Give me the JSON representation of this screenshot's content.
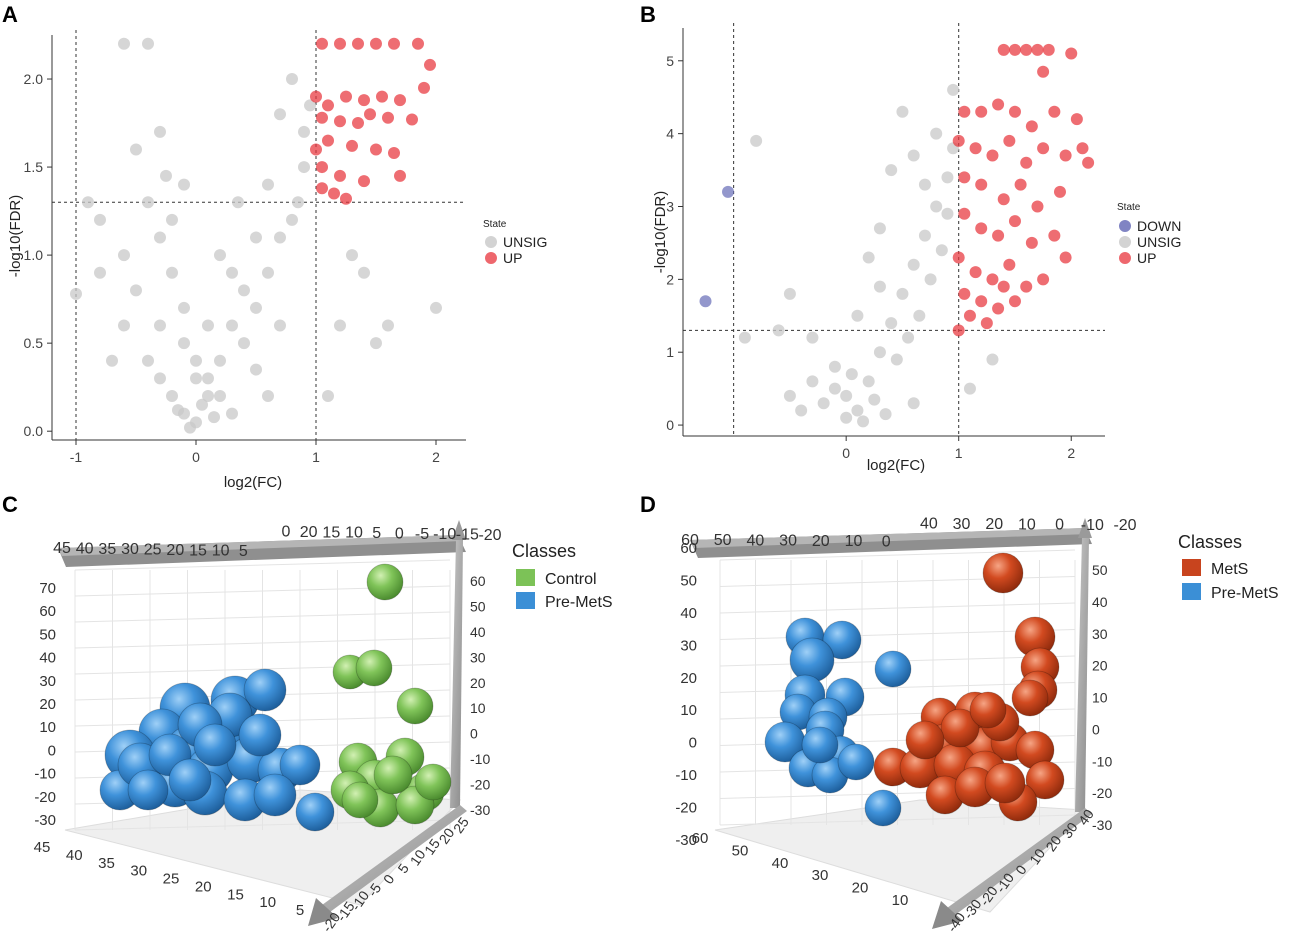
{
  "chart_data": [
    {
      "panel": "A",
      "type": "scatter",
      "xlabel": "log2(FC)",
      "ylabel": "-log10(FDR)",
      "xlim": [
        -1.2,
        2.25
      ],
      "ylim": [
        -0.05,
        2.25
      ],
      "xticks": [
        "-1",
        "0",
        "1",
        "2"
      ],
      "yticks": [
        "0.0",
        "0.5",
        "1.0",
        "1.5",
        "2.0"
      ],
      "thresholds": {
        "x": [
          -1,
          1
        ],
        "y": 1.3
      },
      "legend": {
        "title": "State",
        "items": [
          "UNSIG",
          "UP"
        ]
      },
      "colors": {
        "UNSIG": "#c8c8c8",
        "UP": "#e8343c"
      },
      "series": [
        {
          "name": "UNSIG",
          "points": [
            [
              -1.0,
              0.78
            ],
            [
              -0.8,
              1.2
            ],
            [
              -0.6,
              1.0
            ],
            [
              -0.5,
              1.6
            ],
            [
              -0.4,
              1.3
            ],
            [
              -0.3,
              1.1
            ],
            [
              -0.2,
              0.9
            ],
            [
              -0.3,
              0.6
            ],
            [
              -0.1,
              0.5
            ],
            [
              0.0,
              0.4
            ],
            [
              0.1,
              0.3
            ],
            [
              0.2,
              0.2
            ],
            [
              0.3,
              0.1
            ],
            [
              0.0,
              0.05
            ],
            [
              -0.1,
              0.1
            ],
            [
              -0.2,
              0.2
            ],
            [
              -0.3,
              0.3
            ],
            [
              -0.4,
              0.4
            ],
            [
              0.4,
              0.5
            ],
            [
              0.5,
              0.7
            ],
            [
              0.6,
              0.9
            ],
            [
              0.7,
              1.1
            ],
            [
              0.8,
              1.2
            ],
            [
              0.9,
              1.5
            ],
            [
              0.6,
              1.4
            ],
            [
              0.5,
              1.1
            ],
            [
              0.4,
              0.8
            ],
            [
              0.3,
              0.6
            ],
            [
              0.2,
              0.4
            ],
            [
              0.1,
              0.2
            ],
            [
              -0.5,
              0.8
            ],
            [
              -0.6,
              0.6
            ],
            [
              -0.7,
              0.4
            ],
            [
              -0.8,
              0.9
            ],
            [
              -0.2,
              1.2
            ],
            [
              -0.1,
              1.4
            ],
            [
              -0.3,
              1.7
            ],
            [
              -0.4,
              2.2
            ],
            [
              0.8,
              2.0
            ],
            [
              0.7,
              1.8
            ],
            [
              0.9,
              1.7
            ],
            [
              0.2,
              1.0
            ],
            [
              0.3,
              0.9
            ],
            [
              -0.1,
              0.7
            ],
            [
              0.1,
              0.6
            ],
            [
              0.0,
              0.3
            ],
            [
              0.05,
              0.15
            ],
            [
              -0.05,
              0.02
            ],
            [
              0.15,
              0.08
            ],
            [
              -0.15,
              0.12
            ],
            [
              0.6,
              0.2
            ],
            [
              0.5,
              0.35
            ],
            [
              1.2,
              0.6
            ],
            [
              1.4,
              0.9
            ],
            [
              1.3,
              1.0
            ],
            [
              1.6,
              0.6
            ],
            [
              2.0,
              0.7
            ],
            [
              1.1,
              0.2
            ],
            [
              1.5,
              0.5
            ],
            [
              -0.9,
              1.3
            ],
            [
              -0.6,
              2.2
            ],
            [
              0.95,
              1.85
            ],
            [
              0.85,
              1.3
            ],
            [
              0.7,
              0.6
            ],
            [
              -0.25,
              1.45
            ],
            [
              0.35,
              1.3
            ]
          ]
        },
        {
          "name": "UP",
          "points": [
            [
              1.05,
              2.2
            ],
            [
              1.2,
              2.2
            ],
            [
              1.35,
              2.2
            ],
            [
              1.5,
              2.2
            ],
            [
              1.65,
              2.2
            ],
            [
              1.85,
              2.2
            ],
            [
              1.95,
              2.08
            ],
            [
              1.0,
              1.9
            ],
            [
              1.1,
              1.85
            ],
            [
              1.25,
              1.9
            ],
            [
              1.4,
              1.88
            ],
            [
              1.55,
              1.9
            ],
            [
              1.7,
              1.88
            ],
            [
              1.9,
              1.95
            ],
            [
              1.05,
              1.78
            ],
            [
              1.2,
              1.76
            ],
            [
              1.35,
              1.75
            ],
            [
              1.45,
              1.8
            ],
            [
              1.6,
              1.78
            ],
            [
              1.8,
              1.77
            ],
            [
              1.1,
              1.65
            ],
            [
              1.3,
              1.62
            ],
            [
              1.5,
              1.6
            ],
            [
              1.65,
              1.58
            ],
            [
              1.05,
              1.5
            ],
            [
              1.2,
              1.45
            ],
            [
              1.4,
              1.42
            ],
            [
              1.05,
              1.38
            ],
            [
              1.15,
              1.35
            ],
            [
              1.25,
              1.32
            ],
            [
              1.7,
              1.45
            ],
            [
              1.0,
              1.6
            ]
          ]
        }
      ]
    },
    {
      "panel": "B",
      "type": "scatter",
      "xlabel": "log2(FC)",
      "ylabel": "-log10(FDR)",
      "xlim": [
        -1.45,
        2.3
      ],
      "ylim": [
        -0.15,
        5.45
      ],
      "xticks": [
        "0",
        "1",
        "2"
      ],
      "yticks": [
        "0",
        "1",
        "2",
        "3",
        "4",
        "5"
      ],
      "thresholds": {
        "x": [
          -1,
          1
        ],
        "y": 1.3
      },
      "legend": {
        "title": "State",
        "items": [
          "DOWN",
          "UNSIG",
          "UP"
        ]
      },
      "colors": {
        "DOWN": "#6a6fb8",
        "UNSIG": "#c8c8c8",
        "UP": "#e8343c"
      },
      "series": [
        {
          "name": "DOWN",
          "points": [
            [
              -1.05,
              3.2
            ],
            [
              -1.25,
              1.7
            ]
          ]
        },
        {
          "name": "UNSIG",
          "points": [
            [
              -0.8,
              3.9
            ],
            [
              -0.5,
              1.8
            ],
            [
              -0.3,
              1.2
            ],
            [
              -0.1,
              0.8
            ],
            [
              0.0,
              0.4
            ],
            [
              0.1,
              0.2
            ],
            [
              0.2,
              0.6
            ],
            [
              0.3,
              1.0
            ],
            [
              0.4,
              1.4
            ],
            [
              0.5,
              1.8
            ],
            [
              0.6,
              2.2
            ],
            [
              0.7,
              2.6
            ],
            [
              0.8,
              3.0
            ],
            [
              0.9,
              3.4
            ],
            [
              0.95,
              3.8
            ],
            [
              0.5,
              4.3
            ],
            [
              0.6,
              3.7
            ],
            [
              0.4,
              3.5
            ],
            [
              0.3,
              2.7
            ],
            [
              0.2,
              2.3
            ],
            [
              -0.1,
              0.5
            ],
            [
              -0.2,
              0.3
            ],
            [
              -0.3,
              0.6
            ],
            [
              -0.4,
              0.2
            ],
            [
              0.0,
              0.1
            ],
            [
              0.15,
              0.05
            ],
            [
              0.25,
              0.35
            ],
            [
              0.35,
              0.15
            ],
            [
              0.45,
              0.9
            ],
            [
              0.55,
              1.2
            ],
            [
              0.65,
              1.5
            ],
            [
              0.75,
              2.0
            ],
            [
              0.85,
              2.4
            ],
            [
              0.9,
              2.9
            ],
            [
              0.7,
              3.3
            ],
            [
              0.8,
              4.0
            ],
            [
              0.3,
              1.9
            ],
            [
              0.1,
              1.5
            ],
            [
              -0.6,
              1.3
            ],
            [
              -0.9,
              1.2
            ],
            [
              1.3,
              0.9
            ],
            [
              1.1,
              0.5
            ],
            [
              -0.5,
              0.4
            ],
            [
              0.05,
              0.7
            ],
            [
              0.6,
              0.3
            ],
            [
              0.95,
              4.6
            ]
          ]
        },
        {
          "name": "UP",
          "points": [
            [
              1.4,
              5.15
            ],
            [
              1.5,
              5.15
            ],
            [
              1.6,
              5.15
            ],
            [
              1.7,
              5.15
            ],
            [
              1.8,
              5.15
            ],
            [
              2.0,
              5.1
            ],
            [
              1.75,
              4.85
            ],
            [
              1.05,
              4.3
            ],
            [
              1.2,
              4.3
            ],
            [
              1.35,
              4.4
            ],
            [
              1.5,
              4.3
            ],
            [
              1.65,
              4.1
            ],
            [
              1.85,
              4.3
            ],
            [
              2.05,
              4.2
            ],
            [
              1.0,
              3.9
            ],
            [
              1.15,
              3.8
            ],
            [
              1.3,
              3.7
            ],
            [
              1.45,
              3.9
            ],
            [
              1.6,
              3.6
            ],
            [
              1.75,
              3.8
            ],
            [
              1.95,
              3.7
            ],
            [
              2.1,
              3.8
            ],
            [
              1.05,
              3.4
            ],
            [
              1.2,
              3.3
            ],
            [
              1.4,
              3.1
            ],
            [
              1.55,
              3.3
            ],
            [
              1.7,
              3.0
            ],
            [
              1.9,
              3.2
            ],
            [
              1.05,
              2.9
            ],
            [
              1.2,
              2.7
            ],
            [
              1.35,
              2.6
            ],
            [
              1.5,
              2.8
            ],
            [
              1.65,
              2.5
            ],
            [
              1.85,
              2.6
            ],
            [
              1.0,
              2.3
            ],
            [
              1.15,
              2.1
            ],
            [
              1.3,
              2.0
            ],
            [
              1.45,
              2.2
            ],
            [
              1.6,
              1.9
            ],
            [
              1.75,
              2.0
            ],
            [
              1.95,
              2.3
            ],
            [
              1.05,
              1.8
            ],
            [
              1.2,
              1.7
            ],
            [
              1.35,
              1.6
            ],
            [
              1.5,
              1.7
            ],
            [
              1.1,
              1.5
            ],
            [
              1.25,
              1.4
            ],
            [
              1.0,
              1.3
            ],
            [
              2.15,
              3.6
            ],
            [
              1.4,
              1.9
            ]
          ]
        }
      ]
    },
    {
      "panel": "C",
      "type": "scatter3d",
      "legend": {
        "title": "Classes",
        "items": [
          "Control",
          "Pre-MetS"
        ]
      },
      "colors": {
        "Control": "#7cc257",
        "Pre-MetS": "#3b8fd6"
      },
      "top_ticks": [
        "45",
        "40",
        "35",
        "30",
        "25",
        "20",
        "15",
        "10",
        "5",
        "0",
        "20",
        "15",
        "10",
        "5",
        "0",
        "-5",
        "-10",
        "-15",
        "-20"
      ],
      "left_ticks": [
        "70",
        "60",
        "50",
        "40",
        "30",
        "20",
        "10",
        "0",
        "-10",
        "-20",
        "-30"
      ],
      "right_ticks": [
        "60",
        "50",
        "40",
        "30",
        "20",
        "10",
        "0",
        "-10",
        "-20",
        "-30"
      ],
      "bottom_ticks": [
        "45",
        "40",
        "35",
        "30",
        "25",
        "20",
        "15",
        "10",
        "5"
      ],
      "depth_ticks": [
        "25",
        "20",
        "15",
        "10",
        "5",
        "0",
        "-5",
        "-10",
        "-15",
        "-20"
      ],
      "series": [
        {
          "name": "Control",
          "count": 14
        },
        {
          "name": "Pre-MetS",
          "count": 26
        }
      ]
    },
    {
      "panel": "D",
      "type": "scatter3d",
      "legend": {
        "title": "Classes",
        "items": [
          "MetS",
          "Pre-MetS"
        ]
      },
      "colors": {
        "MetS": "#d2461f",
        "Pre-MetS": "#3b8fd6"
      },
      "top_ticks": [
        "60",
        "50",
        "40",
        "30",
        "20",
        "10",
        "0",
        "40",
        "30",
        "20",
        "10",
        "0",
        "-10",
        "-20"
      ],
      "left_ticks": [
        "60",
        "50",
        "40",
        "30",
        "20",
        "10",
        "0",
        "-10",
        "-20",
        "-30"
      ],
      "right_ticks": [
        "50",
        "40",
        "30",
        "20",
        "10",
        "0",
        "-10",
        "-20",
        "-30"
      ],
      "bottom_ticks": [
        "60",
        "50",
        "40",
        "30",
        "20",
        "10"
      ],
      "depth_ticks": [
        "40",
        "30",
        "20",
        "10",
        "0",
        "-10",
        "-20",
        "-30",
        "-40"
      ],
      "series": [
        {
          "name": "MetS",
          "count": 24
        },
        {
          "name": "Pre-MetS",
          "count": 16
        }
      ]
    }
  ]
}
